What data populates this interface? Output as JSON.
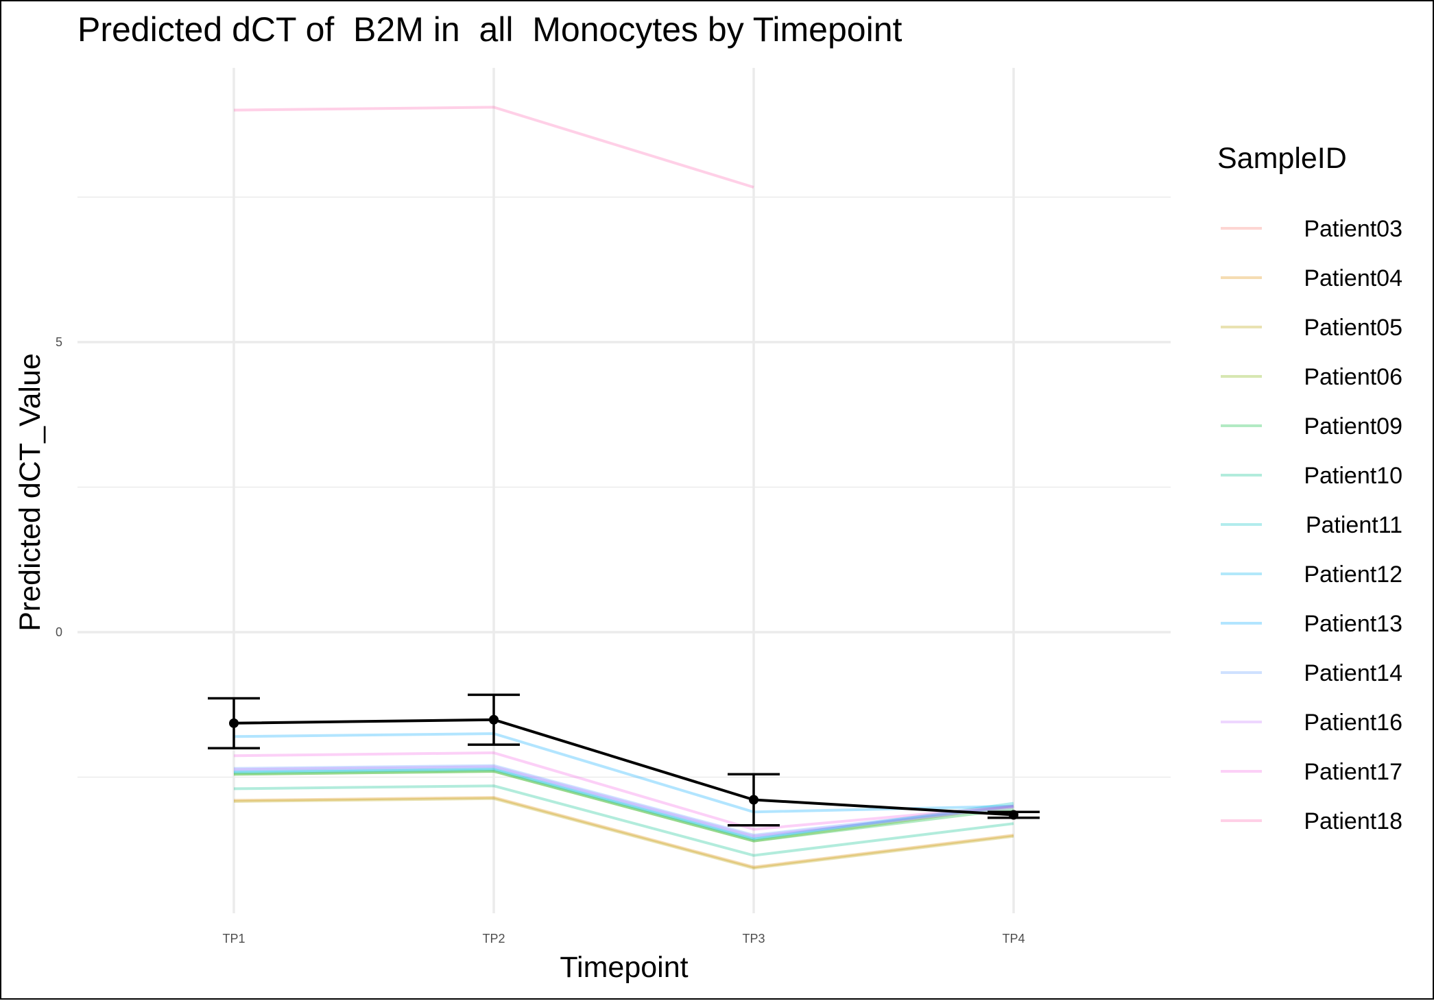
{
  "chart_data": {
    "type": "line",
    "title": "Predicted dCT of  B2M in  all  Monocytes by Timepoint",
    "xlabel": "Timepoint",
    "ylabel": "Predicted dCT_Value",
    "categories": [
      "TP1",
      "TP2",
      "TP3",
      "TP4"
    ],
    "yticks": [
      0,
      5
    ],
    "ylim": [
      -5.0,
      9.7
    ],
    "grid": true,
    "legend": {
      "title": "SampleID",
      "position": "right"
    },
    "series": [
      {
        "name": "Patient03",
        "color": "#F8766D",
        "values": [
          null,
          null,
          null,
          null
        ]
      },
      {
        "name": "Patient04",
        "color": "#DE8C00",
        "values": [
          -2.9,
          -2.85,
          -4.05,
          -3.5
        ]
      },
      {
        "name": "Patient05",
        "color": "#B79F00",
        "values": [
          -2.92,
          -2.87,
          -4.07,
          -3.52
        ]
      },
      {
        "name": "Patient06",
        "color": "#7CAE00",
        "values": [
          -2.45,
          -2.4,
          -3.6,
          -3.0
        ]
      },
      {
        "name": "Patient09",
        "color": "#00BA38",
        "values": [
          -2.45,
          -2.4,
          -3.6,
          -3.05
        ]
      },
      {
        "name": "Patient10",
        "color": "#00C08B",
        "values": [
          -2.7,
          -2.65,
          -3.85,
          -3.3
        ]
      },
      {
        "name": "Patient11",
        "color": "#00BFC4",
        "values": [
          -2.42,
          -2.37,
          -3.57,
          -2.95
        ]
      },
      {
        "name": "Patient12",
        "color": "#00B4F0",
        "values": [
          -2.4,
          -2.35,
          -3.55,
          -3.0
        ]
      },
      {
        "name": "Patient13",
        "color": "#00A9FF",
        "values": [
          -1.8,
          -1.75,
          -3.1,
          -3.0
        ]
      },
      {
        "name": "Patient14",
        "color": "#619CFF",
        "values": [
          -2.35,
          -2.3,
          -3.5,
          -3.0
        ]
      },
      {
        "name": "Patient16",
        "color": "#C77CFF",
        "values": [
          -2.37,
          -2.32,
          -3.52,
          -3.02
        ]
      },
      {
        "name": "Patient17",
        "color": "#F564E3",
        "values": [
          -2.13,
          -2.08,
          -3.4,
          -3.0
        ]
      },
      {
        "name": "Patient18",
        "color": "#FF64B0",
        "values": [
          9.0,
          9.05,
          7.67,
          null
        ]
      }
    ],
    "mean": {
      "values": [
        -1.57,
        -1.51,
        -2.89,
        -3.15
      ],
      "error_low": [
        -2.0,
        -1.94,
        -3.33,
        -3.2
      ],
      "error_high": [
        -1.14,
        -1.08,
        -2.45,
        -3.1
      ],
      "color": "#000000"
    }
  }
}
